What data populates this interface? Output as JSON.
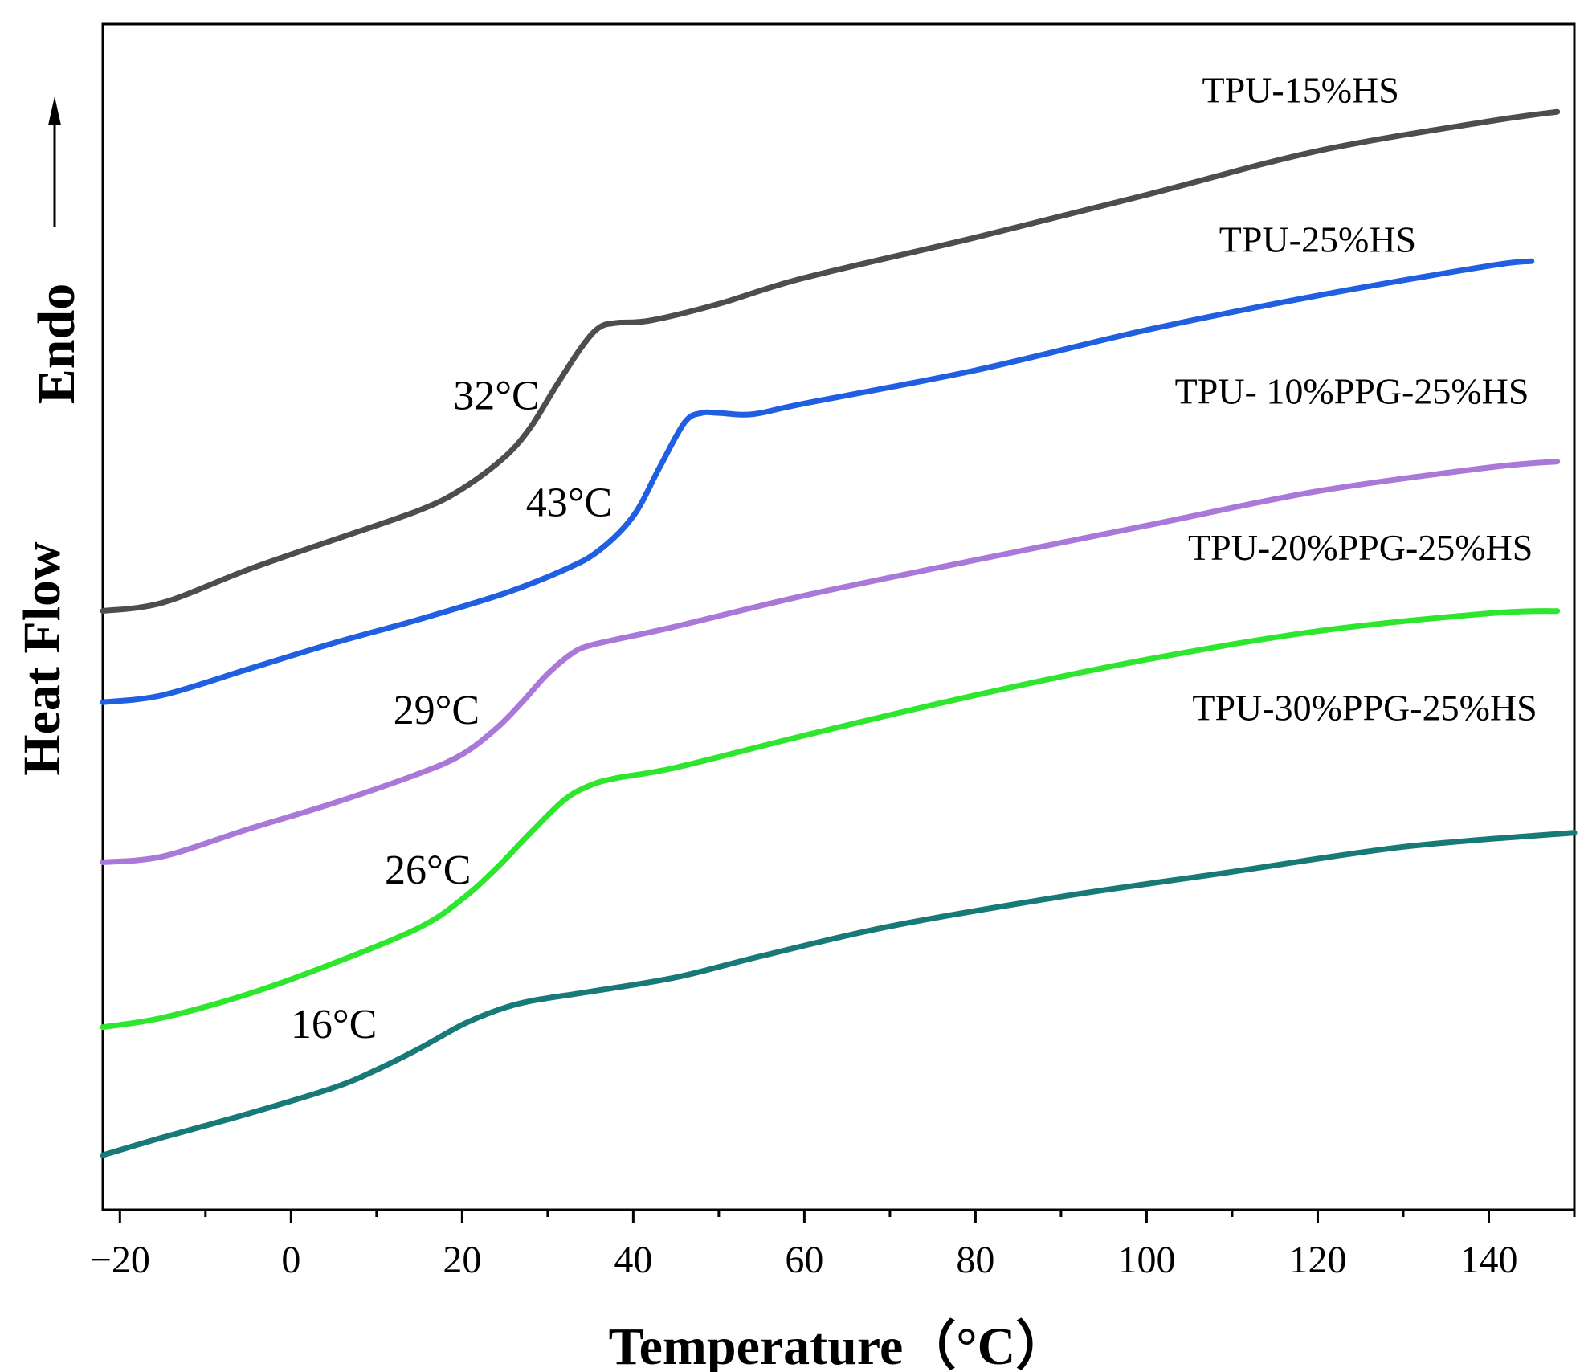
{
  "chart_data": {
    "type": "line",
    "title": "",
    "xlabel": "Temperature（°C）",
    "ylabel": "Heat Flow",
    "ylabel_direction": "Endo",
    "xlim": [
      -22,
      150
    ],
    "ylim": [
      0,
      100
    ],
    "x_ticks": [
      -20,
      0,
      20,
      40,
      60,
      80,
      100,
      120,
      140
    ],
    "x_tick_labels": [
      "−20",
      "0",
      "20",
      "40",
      "60",
      "80",
      "100",
      "120",
      "140"
    ],
    "y_ticks_shown": false,
    "grid": false,
    "legend": "inline labels at right end of each curve",
    "series": [
      {
        "name": "TPU-15%HS",
        "color": "#4d4d4d",
        "x": [
          -22,
          -15,
          -5,
          5,
          15,
          20,
          25,
          28,
          31,
          34,
          36,
          38,
          42,
          50,
          60,
          80,
          100,
          120,
          140,
          148
        ],
        "y": [
          50.5,
          51.2,
          54.0,
          56.5,
          59.0,
          60.8,
          63.5,
          66.0,
          69.5,
          72.8,
          74.4,
          74.8,
          75.0,
          76.4,
          78.6,
          82.0,
          85.6,
          89.3,
          91.8,
          92.6
        ]
      },
      {
        "name": "TPU-25%HS",
        "color": "#1f5fe0",
        "x": [
          -22,
          -15,
          -5,
          5,
          15,
          25,
          32,
          36,
          40,
          43,
          46,
          48,
          50,
          54,
          60,
          80,
          100,
          120,
          140,
          145
        ],
        "y": [
          42.8,
          43.4,
          45.6,
          47.8,
          49.8,
          52.0,
          54.0,
          55.6,
          58.5,
          62.5,
          66.4,
          67.2,
          67.2,
          67.1,
          68.0,
          70.8,
          74.2,
          77.1,
          79.6,
          80.0
        ]
      },
      {
        "name": "TPU- 10%PPG-25%HS",
        "color": "#a978d8",
        "x": [
          -22,
          -15,
          -5,
          5,
          15,
          20,
          24,
          27,
          30,
          33,
          35,
          38,
          45,
          60,
          80,
          100,
          120,
          140,
          148
        ],
        "y": [
          29.3,
          29.8,
          32.1,
          34.3,
          36.8,
          38.4,
          40.6,
          42.8,
          45.2,
          47.0,
          47.6,
          48.1,
          49.2,
          51.8,
          54.8,
          57.7,
          60.6,
          62.6,
          63.1
        ]
      },
      {
        "name": "TPU-20%PPG-25%HS",
        "color": "#2ee62e",
        "x": [
          -22,
          -15,
          -5,
          5,
          15,
          20,
          24,
          28,
          32,
          35,
          38,
          45,
          60,
          80,
          100,
          120,
          140,
          148
        ],
        "y": [
          15.4,
          16.2,
          18.2,
          20.8,
          23.8,
          26.2,
          28.8,
          31.8,
          34.6,
          35.8,
          36.4,
          37.3,
          40.0,
          43.4,
          46.4,
          48.8,
          50.3,
          50.5
        ]
      },
      {
        "name": "TPU-30%PPG-25%HS",
        "color": "#177a78",
        "x": [
          -22,
          -15,
          -5,
          5,
          10,
          15,
          20,
          24,
          28,
          35,
          45,
          55,
          70,
          90,
          110,
          130,
          150
        ],
        "y": [
          4.6,
          6.1,
          8.1,
          10.3,
          11.8,
          13.6,
          15.6,
          16.8,
          17.6,
          18.4,
          19.6,
          21.4,
          23.9,
          26.4,
          28.5,
          30.6,
          31.8
        ]
      }
    ],
    "annotations": [
      {
        "text": "32°C",
        "x": 24,
        "y": 67.5
      },
      {
        "text": "43°C",
        "x": 32.5,
        "y": 58.5
      },
      {
        "text": "29°C",
        "x": 17,
        "y": 41.0
      },
      {
        "text": "26°C",
        "x": 16,
        "y": 27.5
      },
      {
        "text": "16°C",
        "x": 5,
        "y": 14.5
      }
    ],
    "series_label_positions": [
      {
        "text": "TPU-15%HS",
        "x": 118,
        "y": 93.4
      },
      {
        "text": "TPU-25%HS",
        "x": 120,
        "y": 80.8
      },
      {
        "text": "TPU- 10%PPG-25%HS",
        "x": 124,
        "y": 68.0
      },
      {
        "text": "TPU-20%PPG-25%HS",
        "x": 125,
        "y": 54.8
      },
      {
        "text": "TPU-30%PPG-25%HS",
        "x": 125.5,
        "y": 41.3
      }
    ]
  }
}
